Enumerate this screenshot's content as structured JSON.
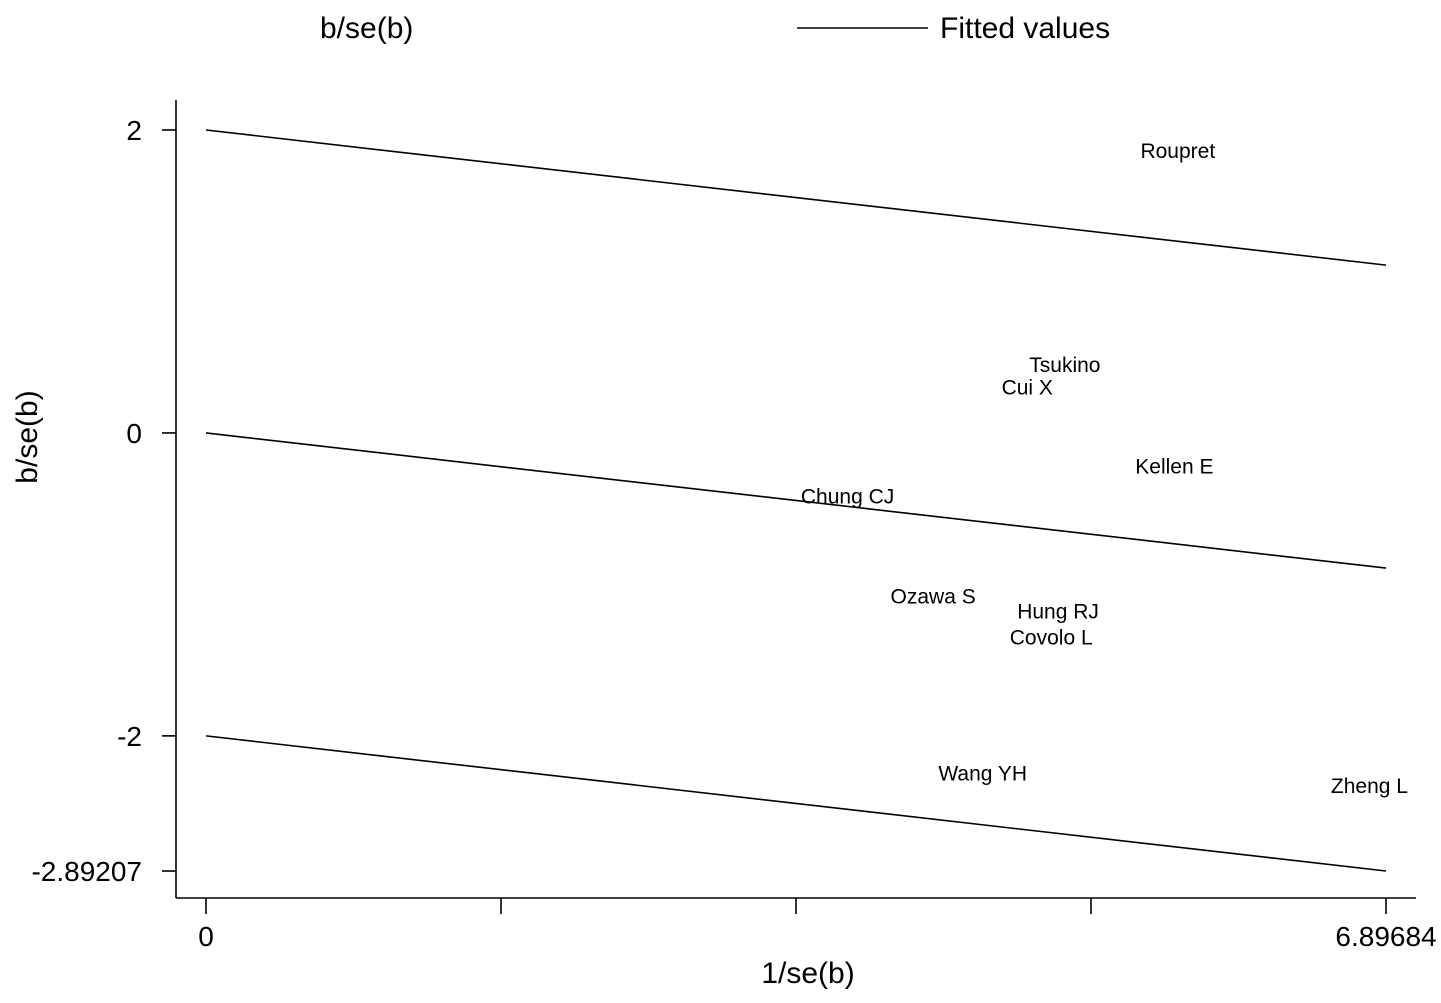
{
  "chart_data": {
    "type": "scatter",
    "title": "",
    "xlabel": "1/se(b)",
    "ylabel": "b/se(b)",
    "xlim": [
      0,
      6.89684
    ],
    "ylim": [
      -2.89207,
      2
    ],
    "x_ticks": [
      0,
      1.72421,
      3.44842,
      5.17263,
      6.89684
    ],
    "x_tick_labels": [
      "0",
      "",
      "",
      "",
      "6.89684"
    ],
    "y_ticks": [
      2,
      0,
      -2,
      -2.89207
    ],
    "y_tick_labels": [
      "2",
      "0",
      "-2",
      "-2.89207"
    ],
    "grid": false,
    "legend": {
      "placement": "top",
      "entries": [
        {
          "label": "b/se(b)",
          "marker": "label-text"
        },
        {
          "label": "Fitted values",
          "marker": "line"
        }
      ]
    },
    "points": [
      {
        "label": "Roupret",
        "x": 5.68,
        "y": 1.86
      },
      {
        "label": "Tsukino",
        "x": 5.02,
        "y": 0.45
      },
      {
        "label": "Cui X",
        "x": 4.8,
        "y": 0.3
      },
      {
        "label": "Kellen E",
        "x": 5.66,
        "y": -0.22
      },
      {
        "label": "Chung CJ",
        "x": 3.75,
        "y": -0.42
      },
      {
        "label": "Ozawa S",
        "x": 4.25,
        "y": -1.08
      },
      {
        "label": "Hung RJ",
        "x": 4.98,
        "y": -1.18
      },
      {
        "label": "Covolo L",
        "x": 4.94,
        "y": -1.35
      },
      {
        "label": "Wang YH",
        "x": 4.54,
        "y": -2.25
      },
      {
        "label": "Zheng L",
        "x": 6.8,
        "y": -2.33
      }
    ],
    "series": [
      {
        "name": "Fitted values",
        "x": [
          0,
          6.89684
        ],
        "y": [
          2,
          1.108
        ]
      },
      {
        "name": "Fitted values",
        "x": [
          0,
          6.89684
        ],
        "y": [
          0,
          -0.892
        ]
      },
      {
        "name": "Fitted values",
        "x": [
          0,
          6.89684
        ],
        "y": [
          -2,
          -2.89207
        ]
      }
    ]
  }
}
